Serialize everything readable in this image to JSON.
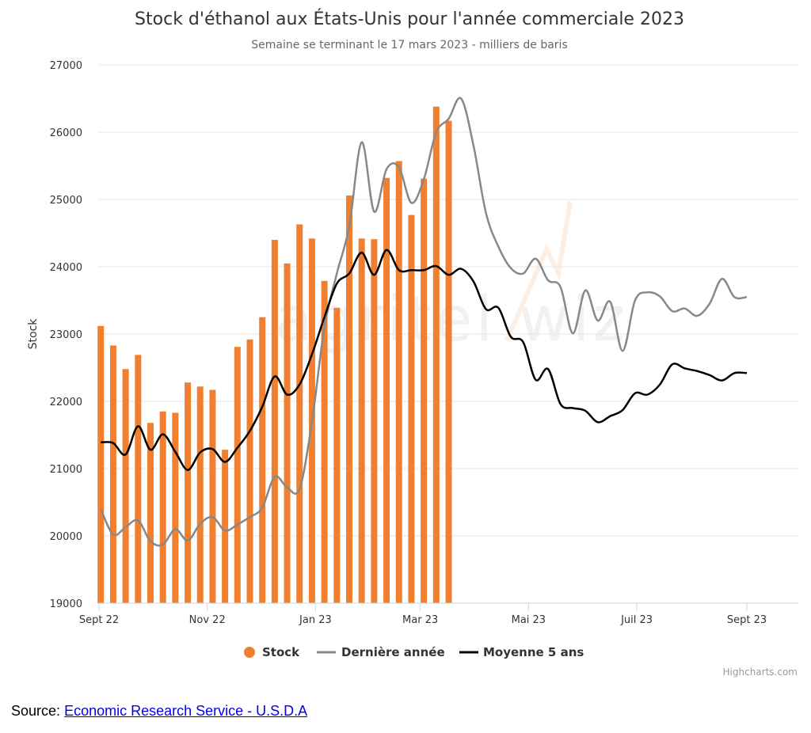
{
  "chart_data": {
    "type": "bar",
    "title": "Stock d'éthanol aux États-Unis pour l'année commerciale 2023",
    "subtitle": "Semaine se terminant le 17 mars 2023 - milliers de baris",
    "ylabel": "Stock",
    "ylim": [
      19000,
      27000
    ],
    "yticks": [
      "19000",
      "20000",
      "21000",
      "22000",
      "23000",
      "24000",
      "25000",
      "26000",
      "27000"
    ],
    "xlim": [
      "2022-09-01",
      "2023-09-30"
    ],
    "xticks": [
      {
        "label": "Sept 22",
        "date": "2022-09-01"
      },
      {
        "label": "Nov 22",
        "date": "2022-11-01"
      },
      {
        "label": "Jan 23",
        "date": "2023-01-01"
      },
      {
        "label": "Mar 23",
        "date": "2023-03-01"
      },
      {
        "label": "Mai 23",
        "date": "2023-05-01"
      },
      {
        "label": "Juil 23",
        "date": "2023-07-01"
      },
      {
        "label": "Sept 23",
        "date": "2023-09-01"
      }
    ],
    "grid": true,
    "legend_position": "bottom-center",
    "colors": {
      "stock": "#f08030",
      "last_year": "#888888",
      "avg5": "#000000",
      "grid": "#e6e6e6",
      "axis": "#ccd6eb"
    },
    "series": [
      {
        "name": "Stock",
        "type": "bar",
        "x": [
          "2022-09-02",
          "2022-09-09",
          "2022-09-16",
          "2022-09-23",
          "2022-09-30",
          "2022-10-07",
          "2022-10-14",
          "2022-10-21",
          "2022-10-28",
          "2022-11-04",
          "2022-11-11",
          "2022-11-18",
          "2022-11-25",
          "2022-12-02",
          "2022-12-09",
          "2022-12-16",
          "2022-12-23",
          "2022-12-30",
          "2023-01-06",
          "2023-01-13",
          "2023-01-20",
          "2023-01-27",
          "2023-02-03",
          "2023-02-10",
          "2023-02-17",
          "2023-02-24",
          "2023-03-03",
          "2023-03-10",
          "2023-03-17"
        ],
        "values": [
          23120,
          22830,
          22480,
          22690,
          21680,
          21850,
          21830,
          22280,
          22220,
          22170,
          21280,
          22810,
          22920,
          23250,
          24400,
          24050,
          24630,
          24420,
          23790,
          23390,
          25060,
          24420,
          24410,
          25320,
          25570,
          24770,
          25310,
          26380,
          26170
        ]
      },
      {
        "name": "Dernière année",
        "type": "line",
        "x": [
          "2022-09-02",
          "2022-09-09",
          "2022-09-16",
          "2022-09-23",
          "2022-09-30",
          "2022-10-07",
          "2022-10-14",
          "2022-10-21",
          "2022-10-28",
          "2022-11-04",
          "2022-11-11",
          "2022-11-18",
          "2022-11-25",
          "2022-12-02",
          "2022-12-09",
          "2022-12-16",
          "2022-12-23",
          "2022-12-30",
          "2023-01-06",
          "2023-01-13",
          "2023-01-20",
          "2023-01-27",
          "2023-02-03",
          "2023-02-10",
          "2023-02-17",
          "2023-02-24",
          "2023-03-03",
          "2023-03-10",
          "2023-03-17",
          "2023-03-24",
          "2023-03-31",
          "2023-04-07",
          "2023-04-14",
          "2023-04-21",
          "2023-04-28",
          "2023-05-05",
          "2023-05-12",
          "2023-05-19",
          "2023-05-26",
          "2023-06-02",
          "2023-06-09",
          "2023-06-16",
          "2023-06-23",
          "2023-06-30",
          "2023-07-07",
          "2023-07-14",
          "2023-07-21",
          "2023-07-28",
          "2023-08-04",
          "2023-08-11",
          "2023-08-18",
          "2023-08-25",
          "2023-09-01"
        ],
        "values": [
          20400,
          20020,
          20130,
          20230,
          19920,
          19870,
          20100,
          19930,
          20180,
          20280,
          20080,
          20170,
          20280,
          20420,
          20880,
          20720,
          20700,
          21700,
          23100,
          23900,
          24600,
          25850,
          24820,
          25450,
          25480,
          24950,
          25300,
          26000,
          26200,
          26500,
          25800,
          24800,
          24300,
          23980,
          23900,
          24120,
          23800,
          23700,
          23010,
          23650,
          23200,
          23480,
          22750,
          23500,
          23620,
          23560,
          23340,
          23380,
          23270,
          23450,
          23820,
          23550,
          23550
        ]
      },
      {
        "name": "Moyenne 5 ans",
        "type": "line",
        "x": [
          "2022-09-02",
          "2022-09-09",
          "2022-09-16",
          "2022-09-23",
          "2022-09-30",
          "2022-10-07",
          "2022-10-14",
          "2022-10-21",
          "2022-10-28",
          "2022-11-04",
          "2022-11-11",
          "2022-11-18",
          "2022-11-25",
          "2022-12-02",
          "2022-12-09",
          "2022-12-16",
          "2022-12-23",
          "2022-12-30",
          "2023-01-06",
          "2023-01-13",
          "2023-01-20",
          "2023-01-27",
          "2023-02-03",
          "2023-02-10",
          "2023-02-17",
          "2023-02-24",
          "2023-03-03",
          "2023-03-10",
          "2023-03-17",
          "2023-03-24",
          "2023-03-31",
          "2023-04-07",
          "2023-04-14",
          "2023-04-21",
          "2023-04-28",
          "2023-05-05",
          "2023-05-12",
          "2023-05-19",
          "2023-05-26",
          "2023-06-02",
          "2023-06-09",
          "2023-06-16",
          "2023-06-23",
          "2023-06-30",
          "2023-07-07",
          "2023-07-14",
          "2023-07-21",
          "2023-07-28",
          "2023-08-04",
          "2023-08-11",
          "2023-08-18",
          "2023-08-25",
          "2023-09-01"
        ],
        "values": [
          21390,
          21380,
          21210,
          21630,
          21280,
          21510,
          21250,
          20980,
          21240,
          21290,
          21100,
          21310,
          21560,
          21920,
          22370,
          22100,
          22250,
          22700,
          23250,
          23750,
          23900,
          24210,
          23880,
          24250,
          23950,
          23950,
          23950,
          24010,
          23880,
          23970,
          23780,
          23370,
          23390,
          22960,
          22880,
          22320,
          22480,
          21960,
          21900,
          21860,
          21690,
          21780,
          21870,
          22120,
          22100,
          22250,
          22550,
          22490,
          22450,
          22390,
          22310,
          22420,
          22420
        ]
      }
    ]
  },
  "watermark_text": "agritel wiz",
  "credit": "Highcharts.com",
  "source": {
    "label": "Source:",
    "link_text": "Economic Research Service - U.S.D.A"
  }
}
